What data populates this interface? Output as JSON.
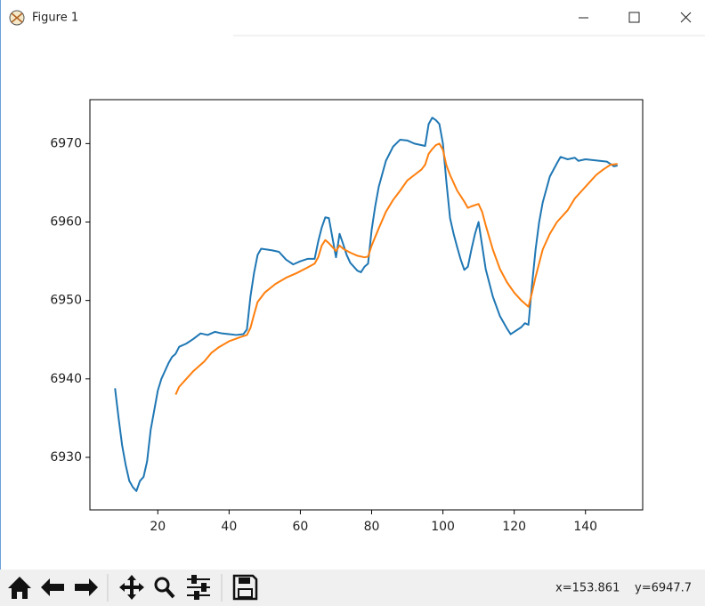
{
  "window": {
    "title": "Figure 1"
  },
  "status": {
    "x": "x=153.861",
    "y": "y=6947.7"
  },
  "chart_data": {
    "type": "line",
    "xlim": [
      0.95,
      156.05
    ],
    "ylim": [
      6923.3,
      6975.6
    ],
    "xticks": [
      20,
      40,
      60,
      80,
      100,
      120,
      140
    ],
    "yticks": [
      6930,
      6940,
      6950,
      6960,
      6970
    ],
    "series": [
      {
        "color": "#1f77b4",
        "x": [
          8,
          9,
          10,
          11,
          12,
          13,
          14,
          15,
          16,
          17,
          18,
          19,
          20,
          21,
          22,
          23,
          24,
          25,
          26,
          28,
          30,
          32,
          34,
          36,
          38,
          40,
          42,
          44,
          45,
          46,
          47,
          48,
          49,
          52,
          54,
          56,
          58,
          60,
          62,
          64,
          65,
          66,
          67,
          68,
          69,
          70,
          71,
          72,
          73,
          74,
          76,
          77,
          78,
          79,
          80,
          81,
          82,
          84,
          86,
          88,
          90,
          92,
          94,
          95,
          96,
          97,
          98,
          99,
          100,
          101,
          102,
          103,
          104,
          105,
          106,
          107,
          108,
          109,
          110,
          111,
          112,
          114,
          116,
          118,
          119,
          120,
          122,
          123,
          124,
          125,
          126,
          127,
          128,
          130,
          132,
          133,
          135,
          137,
          138,
          140,
          142,
          144,
          146,
          148,
          149
        ],
        "values": [
          6938.8,
          6935,
          6931.5,
          6929,
          6927,
          6926.2,
          6925.7,
          6927,
          6927.5,
          6929.5,
          6933.5,
          6936,
          6938.5,
          6940,
          6941,
          6942,
          6942.8,
          6943.2,
          6944.1,
          6944.5,
          6945.1,
          6945.8,
          6945.6,
          6946,
          6945.8,
          6945.7,
          6945.6,
          6945.7,
          6946.3,
          6950.5,
          6953.5,
          6955.8,
          6956.6,
          6956.4,
          6956.2,
          6955.2,
          6954.6,
          6955,
          6955.3,
          6955.3,
          6957.5,
          6959.3,
          6960.6,
          6960.5,
          6958,
          6955.5,
          6958.5,
          6957.2,
          6955.8,
          6954.8,
          6953.8,
          6953.6,
          6954.3,
          6954.7,
          6959,
          6962,
          6964.5,
          6967.8,
          6969.6,
          6970.5,
          6970.4,
          6970,
          6969.8,
          6969.7,
          6972.5,
          6973.3,
          6973,
          6972.5,
          6970,
          6965,
          6960.5,
          6958.5,
          6956.8,
          6955.2,
          6953.9,
          6954.3,
          6956.5,
          6958.5,
          6960,
          6957,
          6954,
          6950.5,
          6948,
          6946.4,
          6945.7,
          6946,
          6946.6,
          6947.1,
          6946.9,
          6952,
          6956.5,
          6960,
          6962.5,
          6965.8,
          6967.5,
          6968.3,
          6968,
          6968.2,
          6967.8,
          6968,
          6967.9,
          6967.8,
          6967.7,
          6967.1,
          6967.2
        ]
      },
      {
        "color": "#ff7f0e",
        "x": [
          25,
          26,
          28,
          30,
          32,
          33,
          35,
          37,
          40,
          43,
          45,
          46,
          47,
          48,
          50,
          53,
          56,
          59,
          62,
          64,
          65,
          66,
          67,
          68,
          69,
          70,
          71,
          72,
          74,
          76,
          78,
          79,
          80,
          82,
          84,
          86,
          88,
          90,
          92,
          94,
          95,
          96,
          97,
          98,
          99,
          100,
          101,
          102,
          104,
          106,
          107,
          108,
          110,
          111,
          112,
          114,
          116,
          118,
          120,
          122,
          124,
          125,
          126,
          128,
          130,
          132,
          134,
          135,
          137,
          139,
          141,
          143,
          145,
          147,
          149
        ],
        "values": [
          6938,
          6939,
          6940,
          6941,
          6941.8,
          6942.2,
          6943.3,
          6944,
          6944.8,
          6945.3,
          6945.6,
          6946.5,
          6948.2,
          6949.8,
          6951,
          6952.1,
          6952.9,
          6953.5,
          6954.2,
          6954.7,
          6955.5,
          6957,
          6957.7,
          6957.3,
          6956.8,
          6956.3,
          6957,
          6956.6,
          6956.1,
          6955.7,
          6955.5,
          6955.6,
          6957,
          6959.2,
          6961.3,
          6962.8,
          6964,
          6965.3,
          6966,
          6966.7,
          6967.3,
          6968.7,
          6969.3,
          6969.8,
          6970,
          6969.2,
          6967.2,
          6966,
          6964,
          6962.6,
          6961.8,
          6962,
          6962.3,
          6961.3,
          6959.6,
          6956.5,
          6954,
          6952.3,
          6951,
          6950,
          6949.2,
          6951,
          6953,
          6956.5,
          6958.5,
          6960,
          6961,
          6961.5,
          6963,
          6964,
          6965,
          6966,
          6966.7,
          6967.3,
          6967.4
        ]
      }
    ]
  }
}
